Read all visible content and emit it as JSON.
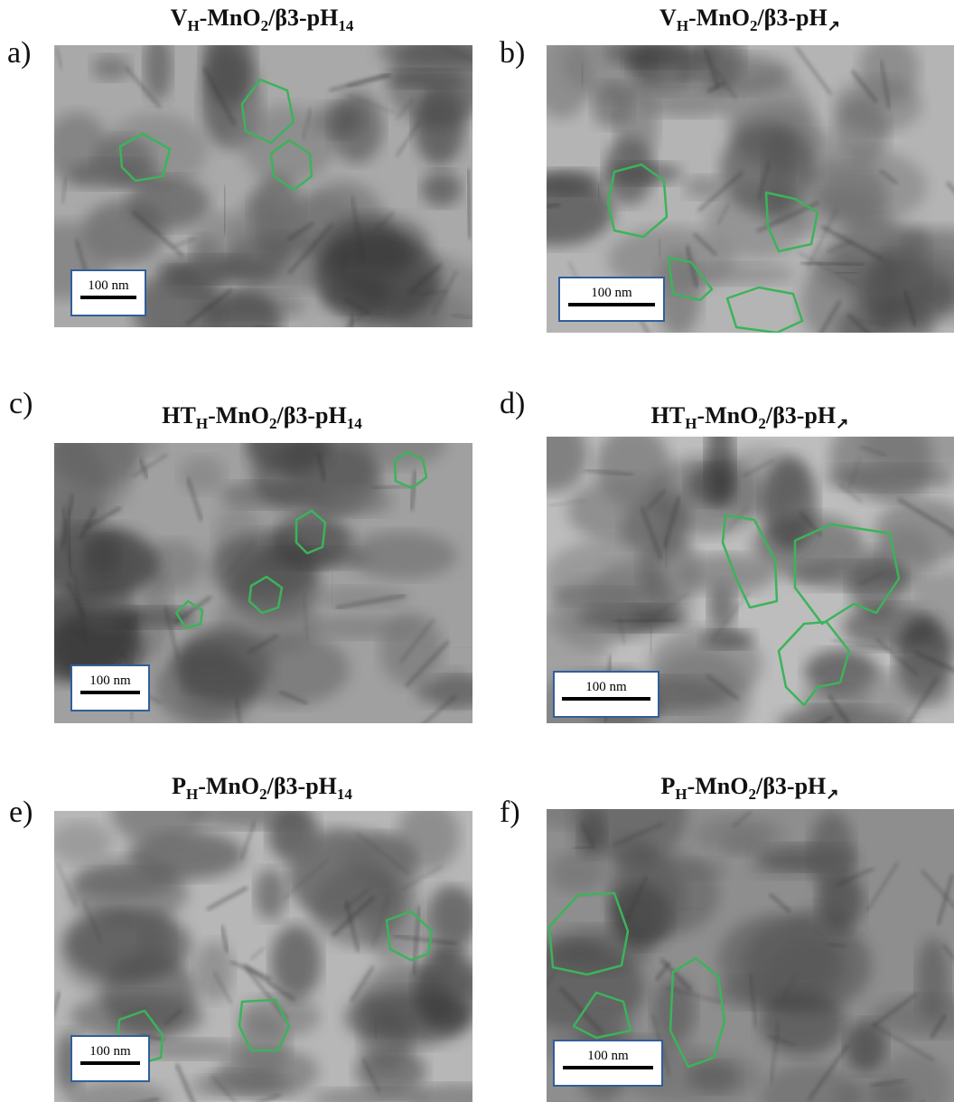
{
  "panels": [
    {
      "label": "a)",
      "title": [
        {
          "text": "V"
        },
        {
          "text": "H",
          "sub": true
        },
        {
          "text": "-MnO"
        },
        {
          "text": "2",
          "sub": true
        },
        {
          "text": "/β3-pH"
        },
        {
          "text": "14",
          "sub": true
        }
      ],
      "scale_bar": "100 nm"
    },
    {
      "label": "b)",
      "title": [
        {
          "text": "V"
        },
        {
          "text": "H",
          "sub": true
        },
        {
          "text": "-MnO"
        },
        {
          "text": "2",
          "sub": true
        },
        {
          "text": "/β3-pH"
        },
        {
          "text": "↗",
          "sub": true
        }
      ],
      "scale_bar": "100 nm"
    },
    {
      "label": "c)",
      "title": [
        {
          "text": "HT"
        },
        {
          "text": "H",
          "sub": true
        },
        {
          "text": "-MnO"
        },
        {
          "text": "2",
          "sub": true
        },
        {
          "text": "/β3-pH"
        },
        {
          "text": "14",
          "sub": true
        }
      ],
      "scale_bar": "100 nm"
    },
    {
      "label": "d)",
      "title": [
        {
          "text": "HT"
        },
        {
          "text": "H",
          "sub": true
        },
        {
          "text": "-MnO"
        },
        {
          "text": "2",
          "sub": true
        },
        {
          "text": "/β3-pH"
        },
        {
          "text": "↗",
          "sub": true
        }
      ],
      "scale_bar": "100 nm"
    },
    {
      "label": "e)",
      "title": [
        {
          "text": "P"
        },
        {
          "text": "H",
          "sub": true
        },
        {
          "text": "-MnO"
        },
        {
          "text": "2",
          "sub": true
        },
        {
          "text": "/β3-pH"
        },
        {
          "text": "14",
          "sub": true
        }
      ],
      "scale_bar": "100 nm"
    },
    {
      "label": "f)",
      "title": [
        {
          "text": "P"
        },
        {
          "text": "H",
          "sub": true
        },
        {
          "text": "-MnO"
        },
        {
          "text": "2",
          "sub": true
        },
        {
          "text": "/β3-pH"
        },
        {
          "text": "↗",
          "sub": true
        }
      ],
      "scale_bar": "100 nm"
    }
  ]
}
